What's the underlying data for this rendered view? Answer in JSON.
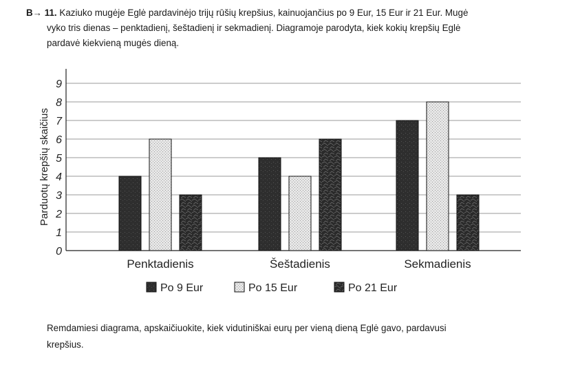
{
  "task": {
    "number": "B→ 11.",
    "lines": [
      "Kaziuko mugėje Eglė pardavinėjo trijų rūšių krepšius, kainuojančius po 9 Eur, 15 Eur ir 21 Eur. Mugė",
      "vyko tris dienas – penktadienį, šeštadienį ir sekmadienį. Diagramoje parodyta, kiek kokių krepšių Eglė",
      "pardavė kiekvieną mugės dieną."
    ]
  },
  "chart_data": {
    "type": "bar",
    "ylabel": "Parduotų krepšių skaičius",
    "xlabel": "",
    "ylim": [
      0,
      9
    ],
    "yticks": [
      "0",
      "1",
      "2",
      "3",
      "4",
      "5",
      "6",
      "7",
      "8",
      "9"
    ],
    "grid": true,
    "legend_position": "bottom",
    "categories": [
      "Penktadienis",
      "Šeštadienis",
      "Sekmadienis"
    ],
    "series": [
      {
        "name": "Po 9 Eur",
        "values": [
          4,
          5,
          7
        ],
        "color": "#333333"
      },
      {
        "name": "Po 15 Eur",
        "values": [
          6,
          4,
          8
        ],
        "color": "#d4d4d4"
      },
      {
        "name": "Po 21 Eur",
        "values": [
          3,
          6,
          3
        ],
        "color": "#3a3a3a"
      }
    ]
  },
  "question": {
    "lines": [
      "Remdamiesi diagrama, apskaičiuokite, kiek vidutiniškai eurų per vieną dieną Eglė gavo, pardavusi",
      "krepšius."
    ]
  }
}
